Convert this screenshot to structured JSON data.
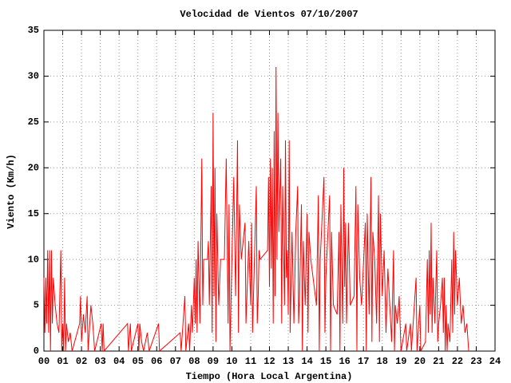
{
  "chart_data": {
    "type": "line",
    "title": "Velocidad de Vientos 07/10/2007",
    "xlabel": "Tiempo (Hora Local Argentina)",
    "ylabel": "Viento (Km/h)",
    "xlim": [
      0,
      24
    ],
    "ylim": [
      0,
      35
    ],
    "xticks": [
      {
        "value": 0,
        "label": "00"
      },
      {
        "value": 1,
        "label": "01"
      },
      {
        "value": 2,
        "label": "02"
      },
      {
        "value": 3,
        "label": "03"
      },
      {
        "value": 4,
        "label": "04"
      },
      {
        "value": 5,
        "label": "05"
      },
      {
        "value": 6,
        "label": "06"
      },
      {
        "value": 7,
        "label": "07"
      },
      {
        "value": 8,
        "label": "08"
      },
      {
        "value": 9,
        "label": "09"
      },
      10,
      11,
      12,
      13,
      14,
      15,
      16,
      17,
      18,
      19,
      20,
      21,
      22,
      23,
      24
    ],
    "yticks": [
      0,
      5,
      10,
      15,
      20,
      25,
      30,
      35
    ],
    "grid": true,
    "series": [
      {
        "color": "#ff0000",
        "x": [
          0,
          0.05,
          0.1,
          0.15,
          0.2,
          0.25,
          0.3,
          0.35,
          0.4,
          0.45,
          0.5,
          0.6,
          0.7,
          0.8,
          0.9,
          0.95,
          1,
          1.05,
          1.1,
          1.15,
          1.2,
          1.3,
          1.4,
          1.5,
          1.9,
          1.95,
          2,
          2.1,
          2.2,
          2.3,
          2.35,
          2.5,
          2.6,
          2.7,
          3.05,
          3.1,
          3.15,
          3.2,
          4.45,
          4.5,
          4.6,
          4.65,
          5,
          5.05,
          5.1,
          5.2,
          5.3,
          5.5,
          5.6,
          6.1,
          6.15,
          7.25,
          7.3,
          7.5,
          7.55,
          7.7,
          7.75,
          7.85,
          7.9,
          8,
          8.05,
          8.1,
          8.15,
          8.2,
          8.3,
          8.4,
          8.45,
          8.5,
          8.7,
          8.75,
          8.8,
          8.9,
          8.95,
          9,
          9.05,
          9.1,
          9.15,
          9.2,
          9.3,
          9.4,
          9.6,
          9.7,
          9.8,
          9.85,
          9.9,
          10,
          10.1,
          10.2,
          10.3,
          10.35,
          10.4,
          10.5,
          10.7,
          10.75,
          10.9,
          11,
          11.05,
          11.1,
          11.2,
          11.3,
          11.35,
          11.4,
          11.45,
          11.5,
          11.9,
          11.95,
          12,
          12.05,
          12.1,
          12.15,
          12.2,
          12.25,
          12.3,
          12.35,
          12.4,
          12.45,
          12.5,
          12.6,
          12.65,
          12.7,
          12.8,
          12.85,
          12.9,
          12.95,
          13,
          13.05,
          13.1,
          13.2,
          13.3,
          13.4,
          13.5,
          13.55,
          13.6,
          13.7,
          13.75,
          13.8,
          13.9,
          14,
          14.05,
          14.1,
          14.2,
          14.5,
          14.6,
          14.65,
          14.7,
          14.9,
          14.95,
          15,
          15.2,
          15.25,
          15.3,
          15.4,
          15.6,
          15.7,
          15.75,
          15.8,
          15.9,
          15.95,
          16,
          16.05,
          16.1,
          16.2,
          16.3,
          16.5,
          16.6,
          16.65,
          16.7,
          16.8,
          16.9,
          17.1,
          17.15,
          17.2,
          17.3,
          17.4,
          17.45,
          17.5,
          17.6,
          17.7,
          17.8,
          17.85,
          17.9,
          18,
          18.1,
          18.2,
          18.3,
          18.5,
          18.6,
          18.65,
          18.7,
          18.8,
          18.9,
          19,
          19.25,
          19.3,
          19.5,
          19.55,
          19.8,
          19.85,
          20,
          20.05,
          20.3,
          20.4,
          20.45,
          20.5,
          20.55,
          20.6,
          20.65,
          20.7,
          20.8,
          20.9,
          20.95,
          21,
          21.1,
          21.2,
          21.25,
          21.3,
          21.35,
          21.4,
          21.45,
          21.5,
          21.6,
          21.7,
          21.75,
          21.8,
          21.85,
          21.9,
          22,
          22.1,
          22.2,
          22.3,
          22.4,
          22.5,
          22.6
        ],
        "values": [
          8,
          2,
          8,
          3,
          11,
          2,
          11,
          0,
          11,
          3,
          8,
          5,
          3,
          2,
          11,
          0,
          3,
          0,
          8,
          0,
          3,
          1,
          2,
          0,
          3,
          6,
          1,
          4,
          2,
          6,
          0,
          5,
          3,
          0,
          3,
          0,
          3,
          0,
          3,
          0,
          3,
          0,
          3,
          0,
          3,
          1,
          0,
          2,
          0,
          3,
          0,
          2,
          0,
          6,
          0,
          3,
          0,
          5,
          2,
          8,
          3,
          10,
          2,
          12,
          3,
          21,
          5,
          10,
          10,
          12,
          5,
          18,
          2,
          26,
          6,
          20,
          1,
          15,
          5,
          10,
          10,
          21,
          3,
          16,
          0,
          10,
          19,
          6,
          23,
          2,
          16,
          10,
          14,
          3,
          12,
          5,
          14,
          2,
          10,
          18,
          3,
          6,
          11,
          10,
          11,
          19,
          7,
          21,
          9,
          20,
          3,
          24,
          6,
          31,
          10,
          26,
          13,
          21,
          3,
          18,
          5,
          23,
          8,
          11,
          4,
          23,
          2,
          13,
          3,
          13,
          18,
          3,
          6,
          16,
          0,
          12,
          5,
          15,
          2,
          13,
          10,
          5,
          17,
          0,
          10,
          19,
          2,
          8,
          17,
          0,
          13,
          5,
          4,
          13,
          0,
          16,
          3,
          20,
          7,
          14,
          3,
          14,
          5,
          6,
          18,
          0,
          16,
          8,
          5,
          14,
          0,
          15,
          4,
          19,
          1,
          13,
          10,
          3,
          17,
          1,
          15,
          6,
          11,
          2,
          9,
          1,
          11,
          0,
          5,
          3,
          6,
          0,
          3,
          0,
          3,
          0,
          8,
          0,
          5,
          0,
          1,
          10,
          2,
          11,
          4,
          14,
          2,
          8,
          3,
          11,
          1,
          3,
          5,
          8,
          2,
          8,
          0,
          5,
          0,
          3,
          1,
          10,
          2,
          13,
          4,
          11,
          5,
          8,
          3,
          5,
          2,
          3,
          0
        ]
      }
    ]
  }
}
